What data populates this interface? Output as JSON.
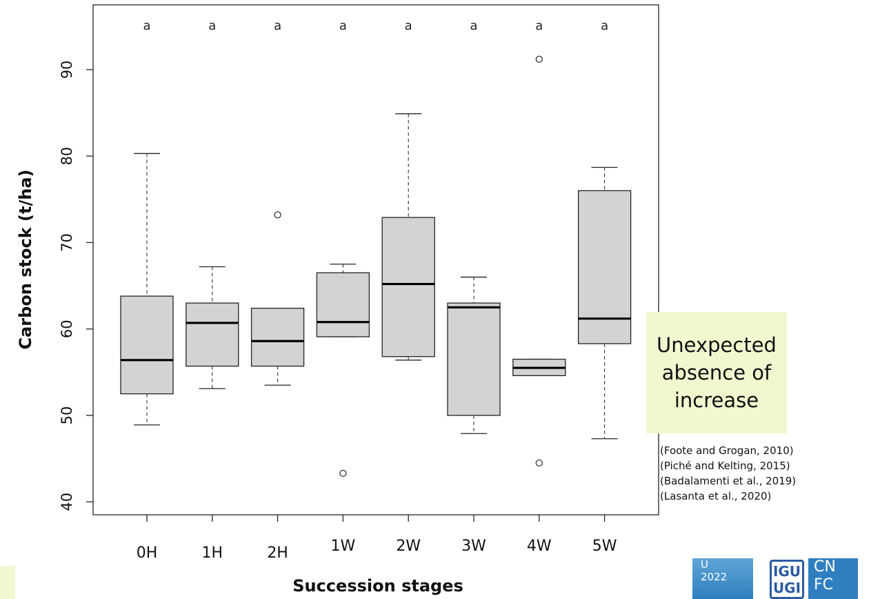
{
  "chart_data": {
    "type": "box",
    "title": "",
    "xlabel": "Succession stages",
    "ylabel": "Carbon stock (t/ha)",
    "ylim": [
      38.5,
      97.5
    ],
    "yticks": [
      40,
      50,
      60,
      70,
      80,
      90
    ],
    "categories": [
      "0H",
      "1H",
      "2H",
      "1W",
      "2W",
      "3W",
      "4W",
      "5W"
    ],
    "significance_letters": [
      "a",
      "a",
      "a",
      "a",
      "a",
      "a",
      "a",
      "a"
    ],
    "boxes": [
      {
        "stage": "0H",
        "whisker_low": 48.9,
        "q1": 52.5,
        "median": 56.4,
        "q3": 63.8,
        "whisker_high": 80.3,
        "outliers": []
      },
      {
        "stage": "1H",
        "whisker_low": 53.1,
        "q1": 55.7,
        "median": 60.7,
        "q3": 63.0,
        "whisker_high": 67.2,
        "outliers": []
      },
      {
        "stage": "2H",
        "whisker_low": 53.5,
        "q1": 55.7,
        "median": 58.6,
        "q3": 62.4,
        "whisker_high": 62.4,
        "outliers": [
          73.2
        ]
      },
      {
        "stage": "1W",
        "whisker_low": 59.1,
        "q1": 59.1,
        "median": 60.8,
        "q3": 66.5,
        "whisker_high": 67.5,
        "outliers": [
          43.3
        ]
      },
      {
        "stage": "2W",
        "whisker_low": 56.4,
        "q1": 56.8,
        "median": 65.2,
        "q3": 72.9,
        "whisker_high": 84.9,
        "outliers": []
      },
      {
        "stage": "3W",
        "whisker_low": 47.9,
        "q1": 50.0,
        "median": 62.5,
        "q3": 63.0,
        "whisker_high": 66.0,
        "outliers": []
      },
      {
        "stage": "4W",
        "whisker_low": 54.6,
        "q1": 54.6,
        "median": 55.5,
        "q3": 56.5,
        "whisker_high": 56.5,
        "outliers": [
          91.2,
          44.5
        ]
      },
      {
        "stage": "5W",
        "whisker_low": 47.3,
        "q1": 58.3,
        "median": 61.2,
        "q3": 76.0,
        "whisker_high": 78.7,
        "outliers": []
      }
    ],
    "box_fill": "#d3d3d3",
    "grid": false
  },
  "callout": {
    "lines": [
      "Unexpected",
      "absence of",
      "increase"
    ],
    "background": "#f1f8cf"
  },
  "references": [
    "(Foote and Grogan, 2010)",
    "(Piché and Kelting, 2015)",
    "(Badalamenti et al., 2019)",
    "(Lasanta et al., 2020)"
  ],
  "logos": {
    "left_logo_lines": [
      "U",
      "2022"
    ],
    "center_logo_lines": [
      "IGU",
      "UGI"
    ],
    "right_logo_lines": [
      "CN",
      "FC"
    ]
  }
}
